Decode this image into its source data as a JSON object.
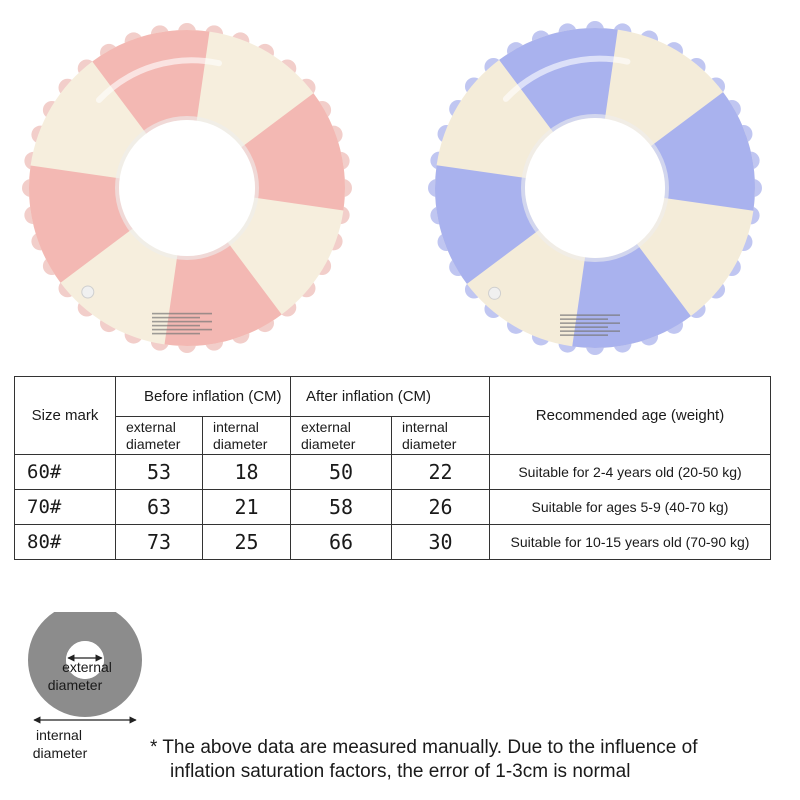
{
  "floats": [
    {
      "name": "pink-swim-ring",
      "stripe_color": "#f3b8b3",
      "base_color": "#f6eedd",
      "edge_color": "#e8a69e"
    },
    {
      "name": "blue-swim-ring",
      "stripe_color": "#a9b2ee",
      "base_color": "#f4ecd9",
      "edge_color": "#8d98e6"
    }
  ],
  "table": {
    "size_mark_label": "Size mark",
    "before_label": "Before inflation (CM)",
    "after_label": "After inflation (CM)",
    "age_label": "Recommended age (weight)",
    "external_diameter_label": "external diameter",
    "internal_diameter_label": "internal diameter",
    "rows": [
      {
        "mark": "60#",
        "before_ext": "53",
        "before_int": "18",
        "after_ext": "50",
        "after_int": "22",
        "age": "Suitable for 2-4 years old (20-50 kg)"
      },
      {
        "mark": "70#",
        "before_ext": "63",
        "before_int": "21",
        "after_ext": "58",
        "after_int": "26",
        "age": "Suitable for ages 5-9 (40-70 kg)"
      },
      {
        "mark": "80#",
        "before_ext": "73",
        "before_int": "25",
        "after_ext": "66",
        "after_int": "30",
        "age": "Suitable for 10-15 years old (70-90 kg)"
      }
    ]
  },
  "diagram": {
    "external_label_1": "external",
    "external_label_2": "diameter",
    "internal_label_1": "internal",
    "internal_label_2": "diameter",
    "ring_color": "#8c8c8c"
  },
  "note": {
    "line1": "* The above data are measured manually. Due to the influence of",
    "line2": "inflation saturation factors, the error of 1-3cm is normal"
  }
}
